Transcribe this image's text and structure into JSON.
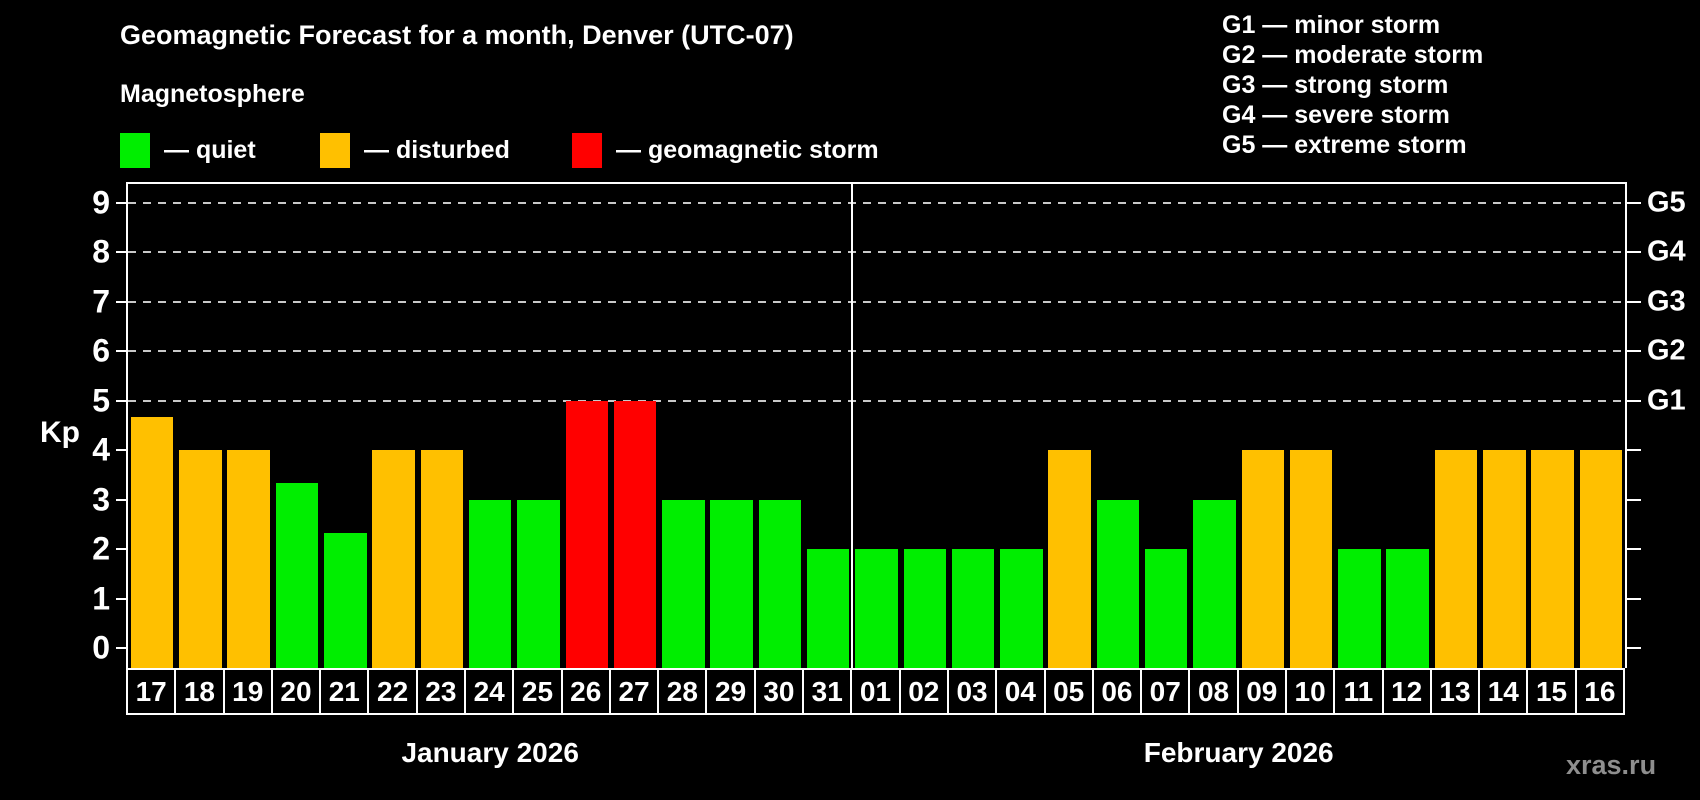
{
  "title": "Geomagnetic Forecast for a month, Denver (UTC-07)",
  "subtitle": "Magnetosphere",
  "legend": {
    "quiet_label": "— quiet",
    "disturbed_label": "— disturbed",
    "storm_label": "— geomagnetic storm"
  },
  "g_legend": [
    "G1 — minor storm",
    "G2 — moderate storm",
    "G3 — strong storm",
    "G4 — severe storm",
    "G5 — extreme storm"
  ],
  "watermark": "xras.ru",
  "colors": {
    "quiet": "#00ee00",
    "disturbed": "#ffc000",
    "storm": "#ff0000",
    "grid": "#c9c9c9",
    "axis": "#ffffff",
    "watermark": "#8e8e8e"
  },
  "chart_data": {
    "type": "bar",
    "title": "Geomagnetic Forecast for a month, Denver (UTC-07)",
    "ylabel": "Kp",
    "ylim": [
      -0.4,
      9.37
    ],
    "y_ticks": [
      0,
      1,
      2,
      3,
      4,
      5,
      6,
      7,
      8,
      9
    ],
    "gridlines_at_kp": [
      5,
      6,
      7,
      8,
      9
    ],
    "grid": "dashed, only at storm levels 5-9",
    "legend_position": "top",
    "g_scale": [
      {
        "kp": 5,
        "label": "G1"
      },
      {
        "kp": 6,
        "label": "G2"
      },
      {
        "kp": 7,
        "label": "G3"
      },
      {
        "kp": 8,
        "label": "G4"
      },
      {
        "kp": 9,
        "label": "G5"
      }
    ],
    "months": [
      {
        "label": "January 2026",
        "days": [
          {
            "date": "17",
            "kp": 4.67,
            "status": "disturbed"
          },
          {
            "date": "18",
            "kp": 4,
            "status": "disturbed"
          },
          {
            "date": "19",
            "kp": 4,
            "status": "disturbed"
          },
          {
            "date": "20",
            "kp": 3.33,
            "status": "quiet"
          },
          {
            "date": "21",
            "kp": 2.33,
            "status": "quiet"
          },
          {
            "date": "22",
            "kp": 4,
            "status": "disturbed"
          },
          {
            "date": "23",
            "kp": 4,
            "status": "disturbed"
          },
          {
            "date": "24",
            "kp": 3,
            "status": "quiet"
          },
          {
            "date": "25",
            "kp": 3,
            "status": "quiet"
          },
          {
            "date": "26",
            "kp": 5,
            "status": "storm"
          },
          {
            "date": "27",
            "kp": 5,
            "status": "storm"
          },
          {
            "date": "28",
            "kp": 3,
            "status": "quiet"
          },
          {
            "date": "29",
            "kp": 3,
            "status": "quiet"
          },
          {
            "date": "30",
            "kp": 3,
            "status": "quiet"
          },
          {
            "date": "31",
            "kp": 2,
            "status": "quiet"
          }
        ]
      },
      {
        "label": "February 2026",
        "days": [
          {
            "date": "01",
            "kp": 2,
            "status": "quiet"
          },
          {
            "date": "02",
            "kp": 2,
            "status": "quiet"
          },
          {
            "date": "03",
            "kp": 2,
            "status": "quiet"
          },
          {
            "date": "04",
            "kp": 2,
            "status": "quiet"
          },
          {
            "date": "05",
            "kp": 4,
            "status": "disturbed"
          },
          {
            "date": "06",
            "kp": 3,
            "status": "quiet"
          },
          {
            "date": "07",
            "kp": 2,
            "status": "quiet"
          },
          {
            "date": "08",
            "kp": 3,
            "status": "quiet"
          },
          {
            "date": "09",
            "kp": 4,
            "status": "disturbed"
          },
          {
            "date": "10",
            "kp": 4,
            "status": "disturbed"
          },
          {
            "date": "11",
            "kp": 2,
            "status": "quiet"
          },
          {
            "date": "12",
            "kp": 2,
            "status": "quiet"
          },
          {
            "date": "13",
            "kp": 4,
            "status": "disturbed"
          },
          {
            "date": "14",
            "kp": 4,
            "status": "disturbed"
          },
          {
            "date": "15",
            "kp": 4,
            "status": "disturbed"
          },
          {
            "date": "16",
            "kp": 4,
            "status": "disturbed"
          }
        ]
      }
    ]
  }
}
